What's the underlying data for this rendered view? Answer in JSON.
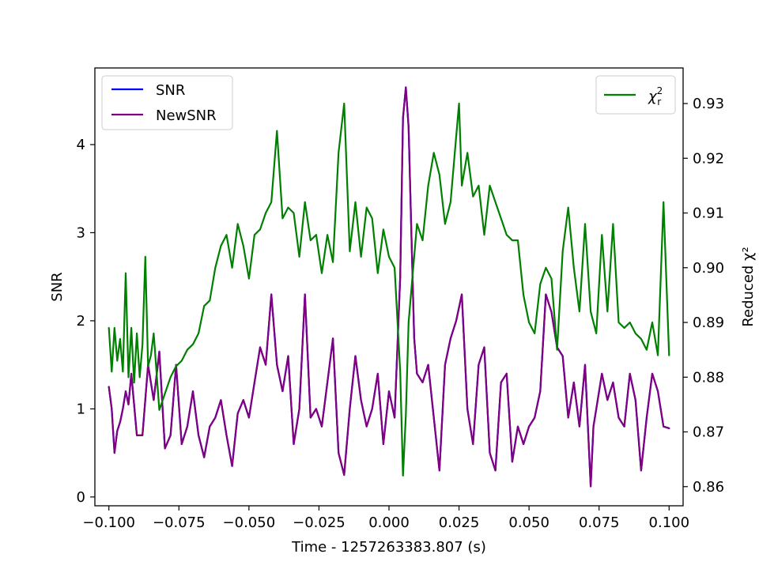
{
  "chart_data": {
    "type": "line",
    "xlabel": "Time - 1257263383.807 (s)",
    "ylabel_left": "SNR",
    "ylabel_right": "Reduced χ²",
    "xlim": [
      -0.105,
      0.105
    ],
    "ylim_left": [
      -0.1,
      4.87
    ],
    "ylim_right": [
      0.8565,
      0.9365
    ],
    "x_ticks": [
      -0.1,
      -0.075,
      -0.05,
      -0.025,
      0.0,
      0.025,
      0.05,
      0.075,
      0.1
    ],
    "x_tick_labels": [
      "−0.100",
      "−0.075",
      "−0.050",
      "−0.025",
      "0.000",
      "0.025",
      "0.050",
      "0.075",
      "0.100"
    ],
    "y_left_ticks": [
      0,
      1,
      2,
      3,
      4
    ],
    "y_left_tick_labels": [
      "0",
      "1",
      "2",
      "3",
      "4"
    ],
    "y_right_ticks": [
      0.86,
      0.87,
      0.88,
      0.89,
      0.9,
      0.91,
      0.92,
      0.93
    ],
    "y_right_tick_labels": [
      "0.86",
      "0.87",
      "0.88",
      "0.89",
      "0.90",
      "0.91",
      "0.92",
      "0.93"
    ],
    "grid": false,
    "legend_left_placement": "top-left",
    "legend_right_placement": "top-right",
    "series": [
      {
        "name": "SNR",
        "axis": "left",
        "color": "#0000ff",
        "x": [
          -0.1,
          -0.099,
          -0.098,
          -0.097,
          -0.096,
          -0.095,
          -0.094,
          -0.093,
          -0.092,
          -0.09,
          -0.088,
          -0.086,
          -0.084,
          -0.082,
          -0.08,
          -0.078,
          -0.076,
          -0.074,
          -0.072,
          -0.07,
          -0.068,
          -0.066,
          -0.064,
          -0.062,
          -0.06,
          -0.058,
          -0.056,
          -0.054,
          -0.052,
          -0.05,
          -0.048,
          -0.046,
          -0.044,
          -0.042,
          -0.04,
          -0.038,
          -0.036,
          -0.034,
          -0.032,
          -0.03,
          -0.028,
          -0.026,
          -0.024,
          -0.022,
          -0.02,
          -0.018,
          -0.016,
          -0.014,
          -0.012,
          -0.01,
          -0.008,
          -0.006,
          -0.004,
          -0.002,
          0.0,
          0.002,
          0.004,
          0.005,
          0.006,
          0.007,
          0.008,
          0.009,
          0.01,
          0.012,
          0.014,
          0.016,
          0.018,
          0.02,
          0.022,
          0.024,
          0.026,
          0.028,
          0.03,
          0.032,
          0.034,
          0.036,
          0.038,
          0.04,
          0.042,
          0.044,
          0.046,
          0.048,
          0.05,
          0.052,
          0.054,
          0.056,
          0.058,
          0.06,
          0.062,
          0.064,
          0.066,
          0.068,
          0.07,
          0.072,
          0.073,
          0.074,
          0.076,
          0.078,
          0.08,
          0.082,
          0.084,
          0.086,
          0.088,
          0.09,
          0.092,
          0.094,
          0.096,
          0.098,
          0.1
        ],
        "values": [
          1.25,
          1.0,
          0.5,
          0.75,
          0.85,
          1.0,
          1.2,
          1.05,
          1.4,
          0.7,
          0.7,
          1.5,
          1.1,
          1.65,
          0.55,
          0.7,
          1.5,
          0.6,
          0.8,
          1.2,
          0.7,
          0.45,
          0.8,
          0.9,
          1.1,
          0.7,
          0.35,
          0.95,
          1.1,
          0.9,
          1.3,
          1.7,
          1.5,
          2.3,
          1.5,
          1.2,
          1.6,
          0.6,
          1.0,
          2.3,
          0.9,
          1.0,
          0.8,
          1.3,
          1.8,
          0.5,
          0.25,
          1.0,
          1.6,
          1.1,
          0.8,
          1.0,
          1.4,
          0.6,
          1.2,
          0.9,
          2.5,
          4.3,
          4.65,
          4.2,
          3.0,
          1.8,
          1.4,
          1.3,
          1.5,
          0.9,
          0.3,
          1.5,
          1.8,
          2.0,
          2.3,
          1.0,
          0.6,
          1.5,
          1.7,
          0.5,
          0.3,
          1.3,
          1.4,
          0.4,
          0.8,
          0.6,
          0.8,
          0.9,
          1.2,
          2.3,
          2.1,
          1.7,
          1.6,
          0.9,
          1.3,
          0.8,
          1.5,
          0.12,
          0.8,
          1.0,
          1.4,
          1.1,
          1.3,
          0.9,
          0.8,
          1.4,
          1.1,
          0.3,
          0.9,
          1.4,
          1.2,
          0.8,
          0.78
        ]
      },
      {
        "name": "NewSNR",
        "axis": "left",
        "color": "#800080",
        "x": [
          -0.1,
          -0.099,
          -0.098,
          -0.097,
          -0.096,
          -0.095,
          -0.094,
          -0.093,
          -0.092,
          -0.09,
          -0.088,
          -0.086,
          -0.084,
          -0.082,
          -0.08,
          -0.078,
          -0.076,
          -0.074,
          -0.072,
          -0.07,
          -0.068,
          -0.066,
          -0.064,
          -0.062,
          -0.06,
          -0.058,
          -0.056,
          -0.054,
          -0.052,
          -0.05,
          -0.048,
          -0.046,
          -0.044,
          -0.042,
          -0.04,
          -0.038,
          -0.036,
          -0.034,
          -0.032,
          -0.03,
          -0.028,
          -0.026,
          -0.024,
          -0.022,
          -0.02,
          -0.018,
          -0.016,
          -0.014,
          -0.012,
          -0.01,
          -0.008,
          -0.006,
          -0.004,
          -0.002,
          0.0,
          0.002,
          0.004,
          0.005,
          0.006,
          0.007,
          0.008,
          0.009,
          0.01,
          0.012,
          0.014,
          0.016,
          0.018,
          0.02,
          0.022,
          0.024,
          0.026,
          0.028,
          0.03,
          0.032,
          0.034,
          0.036,
          0.038,
          0.04,
          0.042,
          0.044,
          0.046,
          0.048,
          0.05,
          0.052,
          0.054,
          0.056,
          0.058,
          0.06,
          0.062,
          0.064,
          0.066,
          0.068,
          0.07,
          0.072,
          0.073,
          0.074,
          0.076,
          0.078,
          0.08,
          0.082,
          0.084,
          0.086,
          0.088,
          0.09,
          0.092,
          0.094,
          0.096,
          0.098,
          0.1
        ],
        "values": [
          1.25,
          1.0,
          0.5,
          0.75,
          0.85,
          1.0,
          1.2,
          1.05,
          1.4,
          0.7,
          0.7,
          1.5,
          1.1,
          1.65,
          0.55,
          0.7,
          1.5,
          0.6,
          0.8,
          1.2,
          0.7,
          0.45,
          0.8,
          0.9,
          1.1,
          0.7,
          0.35,
          0.95,
          1.1,
          0.9,
          1.3,
          1.7,
          1.5,
          2.3,
          1.5,
          1.2,
          1.6,
          0.6,
          1.0,
          2.3,
          0.9,
          1.0,
          0.8,
          1.3,
          1.8,
          0.5,
          0.25,
          1.0,
          1.6,
          1.1,
          0.8,
          1.0,
          1.4,
          0.6,
          1.2,
          0.9,
          2.5,
          4.3,
          4.65,
          4.2,
          3.0,
          1.8,
          1.4,
          1.3,
          1.5,
          0.9,
          0.3,
          1.5,
          1.8,
          2.0,
          2.3,
          1.0,
          0.6,
          1.5,
          1.7,
          0.5,
          0.3,
          1.3,
          1.4,
          0.4,
          0.8,
          0.6,
          0.8,
          0.9,
          1.2,
          2.3,
          2.1,
          1.7,
          1.6,
          0.9,
          1.3,
          0.8,
          1.5,
          0.12,
          0.8,
          1.0,
          1.4,
          1.1,
          1.3,
          0.9,
          0.8,
          1.4,
          1.1,
          0.3,
          0.9,
          1.4,
          1.2,
          0.8,
          0.78
        ]
      },
      {
        "name": "χ²_r",
        "axis": "right",
        "color": "#008000",
        "x": [
          -0.1,
          -0.099,
          -0.098,
          -0.097,
          -0.096,
          -0.095,
          -0.094,
          -0.093,
          -0.092,
          -0.091,
          -0.09,
          -0.089,
          -0.088,
          -0.087,
          -0.086,
          -0.085,
          -0.084,
          -0.082,
          -0.08,
          -0.078,
          -0.076,
          -0.074,
          -0.072,
          -0.07,
          -0.068,
          -0.066,
          -0.064,
          -0.062,
          -0.06,
          -0.058,
          -0.056,
          -0.054,
          -0.052,
          -0.05,
          -0.048,
          -0.046,
          -0.044,
          -0.042,
          -0.04,
          -0.038,
          -0.036,
          -0.034,
          -0.032,
          -0.03,
          -0.028,
          -0.026,
          -0.024,
          -0.022,
          -0.02,
          -0.018,
          -0.016,
          -0.014,
          -0.012,
          -0.01,
          -0.008,
          -0.006,
          -0.004,
          -0.002,
          0.0,
          0.002,
          0.004,
          0.005,
          0.006,
          0.007,
          0.008,
          0.01,
          0.012,
          0.014,
          0.016,
          0.018,
          0.02,
          0.022,
          0.024,
          0.025,
          0.026,
          0.028,
          0.03,
          0.032,
          0.034,
          0.036,
          0.038,
          0.04,
          0.042,
          0.044,
          0.046,
          0.048,
          0.05,
          0.052,
          0.054,
          0.056,
          0.058,
          0.06,
          0.062,
          0.064,
          0.066,
          0.068,
          0.07,
          0.072,
          0.074,
          0.076,
          0.078,
          0.08,
          0.082,
          0.084,
          0.086,
          0.088,
          0.09,
          0.092,
          0.094,
          0.096,
          0.098,
          0.1
        ],
        "values": [
          0.889,
          0.881,
          0.889,
          0.883,
          0.887,
          0.881,
          0.899,
          0.88,
          0.889,
          0.879,
          0.888,
          0.88,
          0.886,
          0.902,
          0.882,
          0.884,
          0.888,
          0.874,
          0.877,
          0.88,
          0.882,
          0.883,
          0.885,
          0.886,
          0.888,
          0.893,
          0.894,
          0.9,
          0.904,
          0.906,
          0.9,
          0.908,
          0.904,
          0.898,
          0.906,
          0.907,
          0.91,
          0.912,
          0.925,
          0.909,
          0.911,
          0.91,
          0.902,
          0.912,
          0.905,
          0.906,
          0.899,
          0.906,
          0.901,
          0.921,
          0.93,
          0.903,
          0.912,
          0.902,
          0.911,
          0.909,
          0.899,
          0.907,
          0.902,
          0.9,
          0.881,
          0.862,
          0.873,
          0.89,
          0.896,
          0.908,
          0.905,
          0.915,
          0.921,
          0.917,
          0.908,
          0.912,
          0.924,
          0.93,
          0.915,
          0.921,
          0.913,
          0.915,
          0.906,
          0.915,
          0.912,
          0.909,
          0.906,
          0.905,
          0.905,
          0.895,
          0.89,
          0.888,
          0.897,
          0.9,
          0.898,
          0.885,
          0.903,
          0.911,
          0.9,
          0.892,
          0.908,
          0.892,
          0.888,
          0.906,
          0.892,
          0.908,
          0.89,
          0.889,
          0.89,
          0.888,
          0.887,
          0.885,
          0.89,
          0.884,
          0.912,
          0.884
        ]
      }
    ]
  }
}
